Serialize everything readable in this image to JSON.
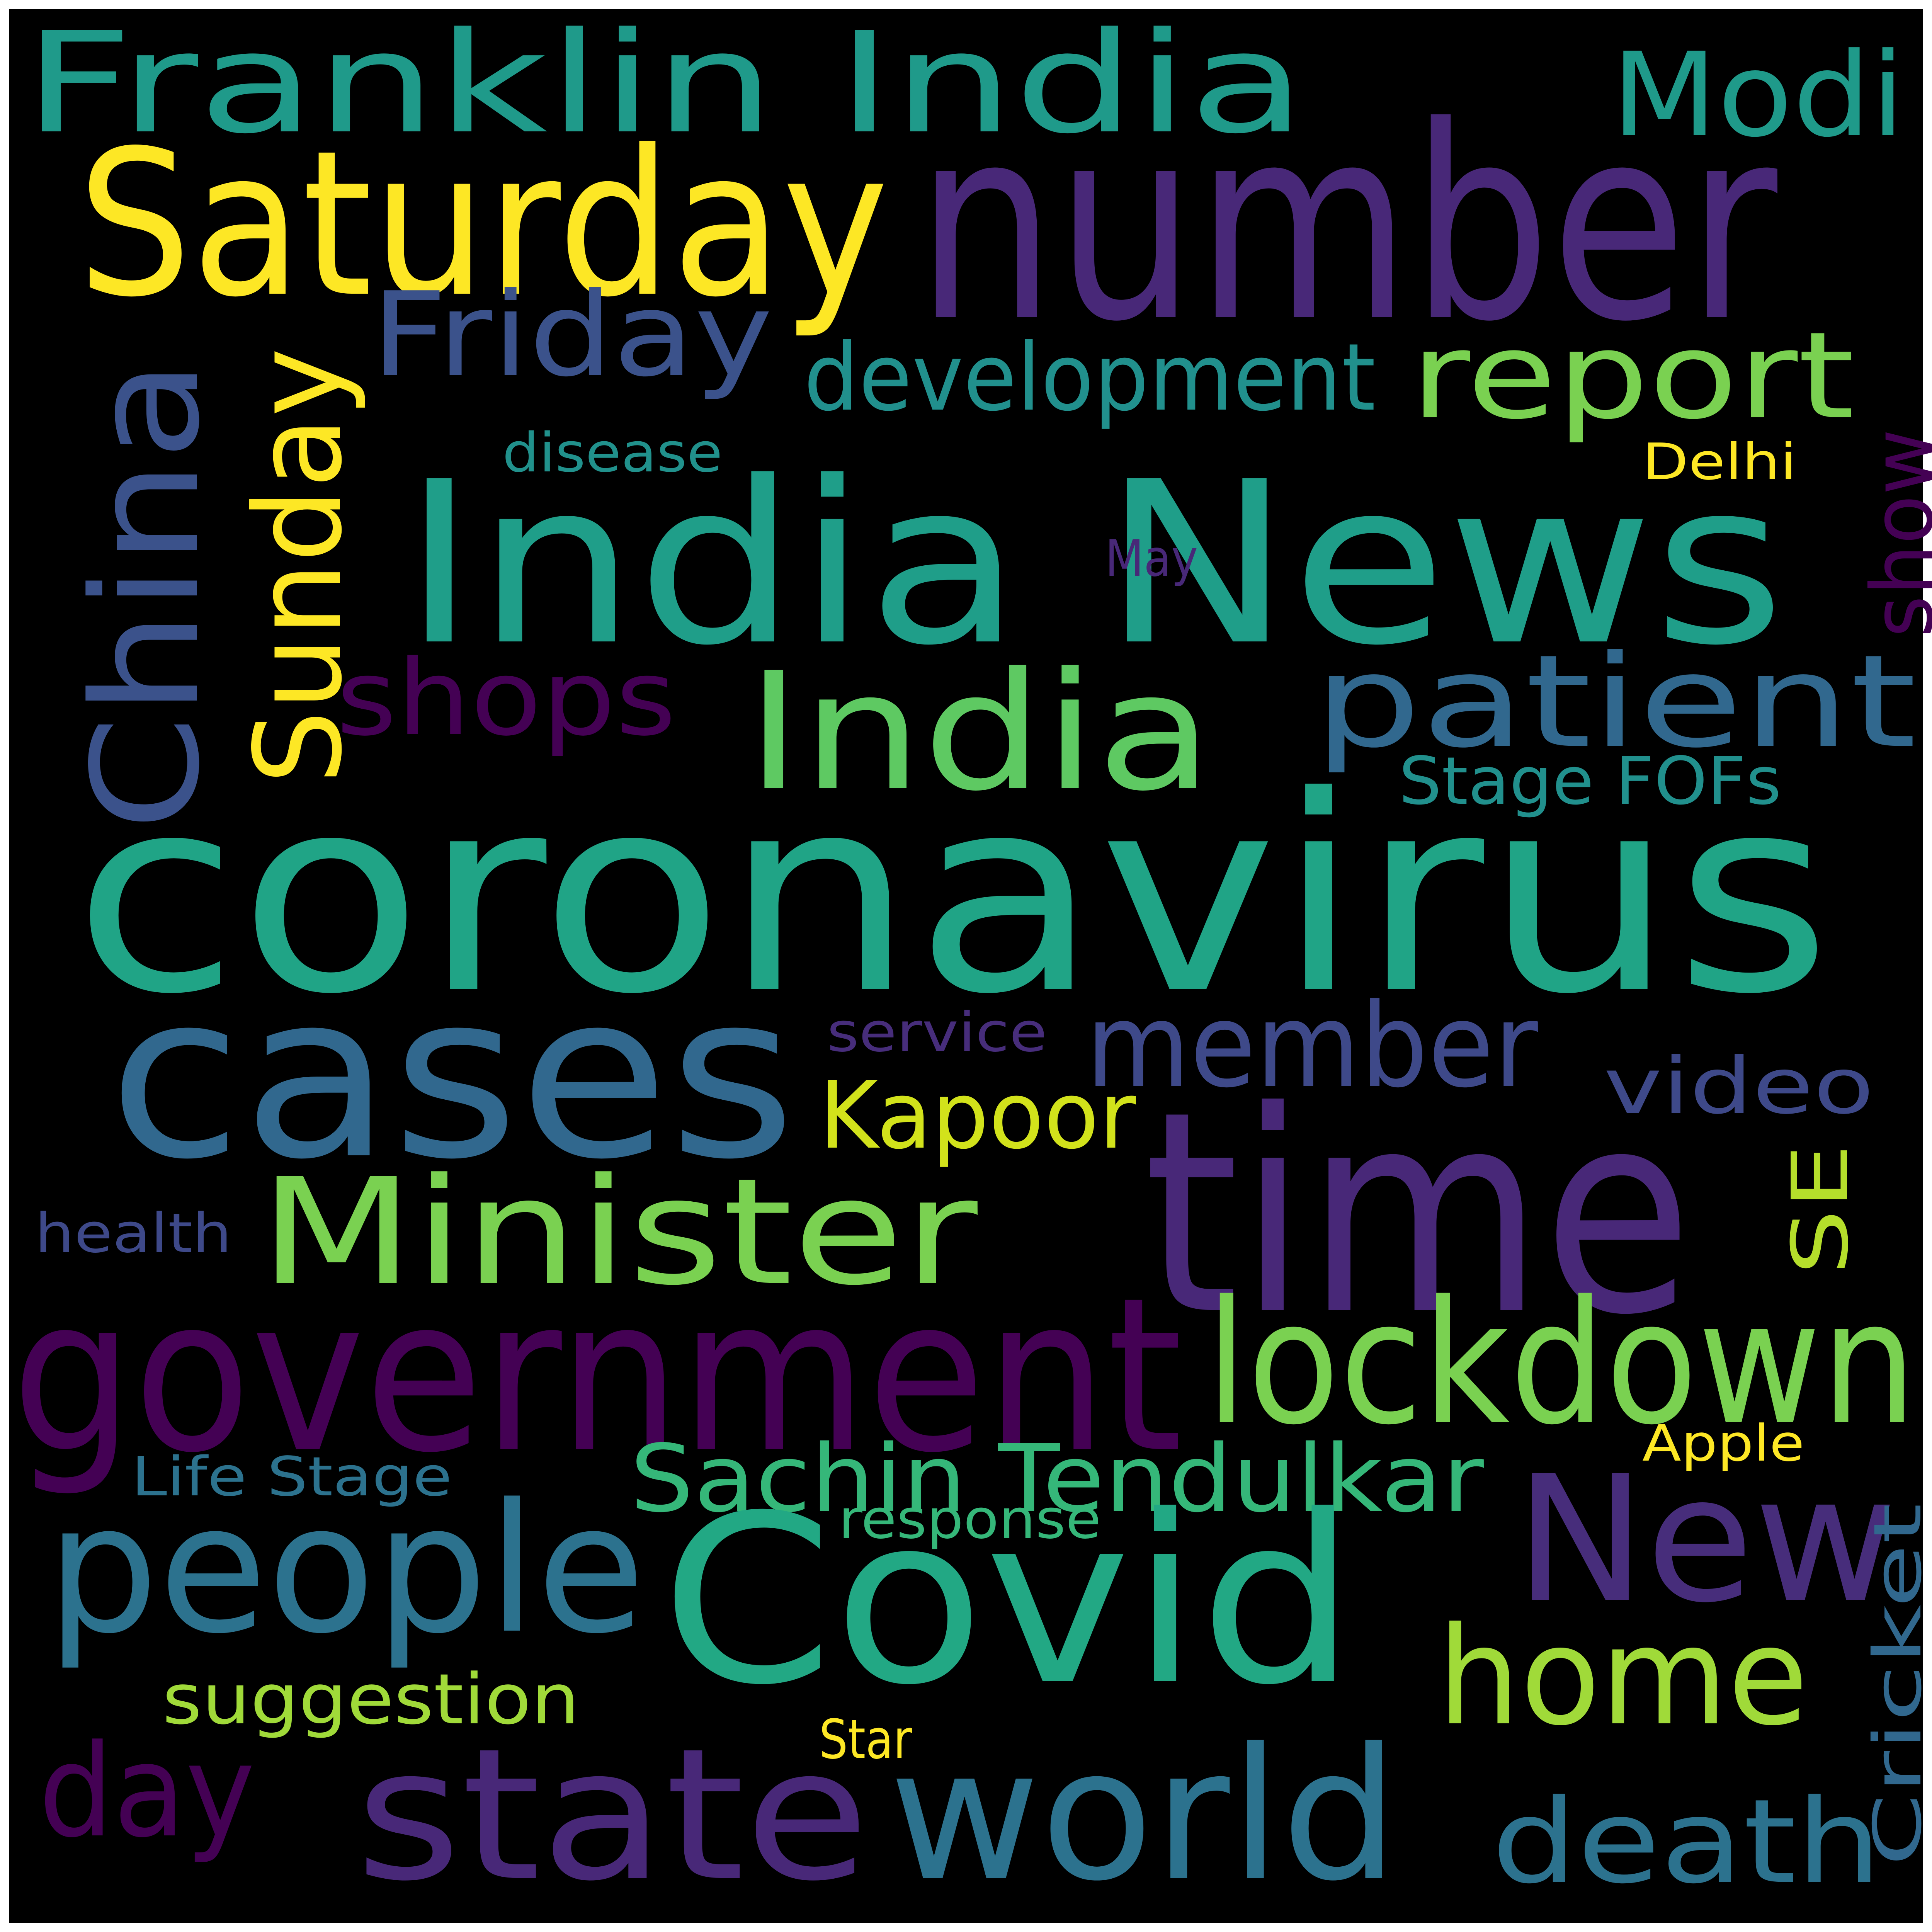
{
  "background": "#000000",
  "frame": "#ffffff",
  "words": [
    {
      "text": "Franklin India",
      "color": "#1f9a8a"
    },
    {
      "text": "Modi",
      "color": "#1f9a8a"
    },
    {
      "text": "Saturday",
      "color": "#fde725"
    },
    {
      "text": "number",
      "color": "#482878"
    },
    {
      "text": "Friday",
      "color": "#3b528b"
    },
    {
      "text": "development",
      "color": "#21908d"
    },
    {
      "text": "report",
      "color": "#7ad151"
    },
    {
      "text": "China",
      "color": "#3b528b"
    },
    {
      "text": "Sunday",
      "color": "#fde725"
    },
    {
      "text": "disease",
      "color": "#21918c"
    },
    {
      "text": "Delhi",
      "color": "#fde725"
    },
    {
      "text": "India News",
      "color": "#1f9e89"
    },
    {
      "text": "May",
      "color": "#482878"
    },
    {
      "text": "show",
      "color": "#440154"
    },
    {
      "text": "shops",
      "color": "#440154"
    },
    {
      "text": "India",
      "color": "#5ec962"
    },
    {
      "text": "patient",
      "color": "#31688e"
    },
    {
      "text": "Stage FOFs",
      "color": "#21908d"
    },
    {
      "text": "coronavirus",
      "color": "#20a486"
    },
    {
      "text": "cases",
      "color": "#31688e"
    },
    {
      "text": "service",
      "color": "#472d7b"
    },
    {
      "text": "member",
      "color": "#3e4989"
    },
    {
      "text": "video",
      "color": "#3e4989"
    },
    {
      "text": "Kapoor",
      "color": "#d2e21b"
    },
    {
      "text": "time",
      "color": "#482878"
    },
    {
      "text": "Minister",
      "color": "#7ad151"
    },
    {
      "text": "SE",
      "color": "#b5de2b"
    },
    {
      "text": "health",
      "color": "#3e4989"
    },
    {
      "text": "government",
      "color": "#440154"
    },
    {
      "text": "lockdown",
      "color": "#7ad151"
    },
    {
      "text": "Apple",
      "color": "#fde725"
    },
    {
      "text": "Life Stage",
      "color": "#2c728e"
    },
    {
      "text": "Sachin Tendulkar",
      "color": "#35b779"
    },
    {
      "text": "New",
      "color": "#472d7b"
    },
    {
      "text": "response",
      "color": "#35b779"
    },
    {
      "text": "people",
      "color": "#2c728e"
    },
    {
      "text": "Covid",
      "color": "#22a884"
    },
    {
      "text": "Cricket",
      "color": "#31688e"
    },
    {
      "text": "suggestion",
      "color": "#a0da39"
    },
    {
      "text": "home",
      "color": "#a0da39"
    },
    {
      "text": "Star",
      "color": "#fde725"
    },
    {
      "text": "day",
      "color": "#440154"
    },
    {
      "text": "state",
      "color": "#482878"
    },
    {
      "text": "world",
      "color": "#2c728e"
    },
    {
      "text": "death",
      "color": "#2c728e"
    }
  ]
}
